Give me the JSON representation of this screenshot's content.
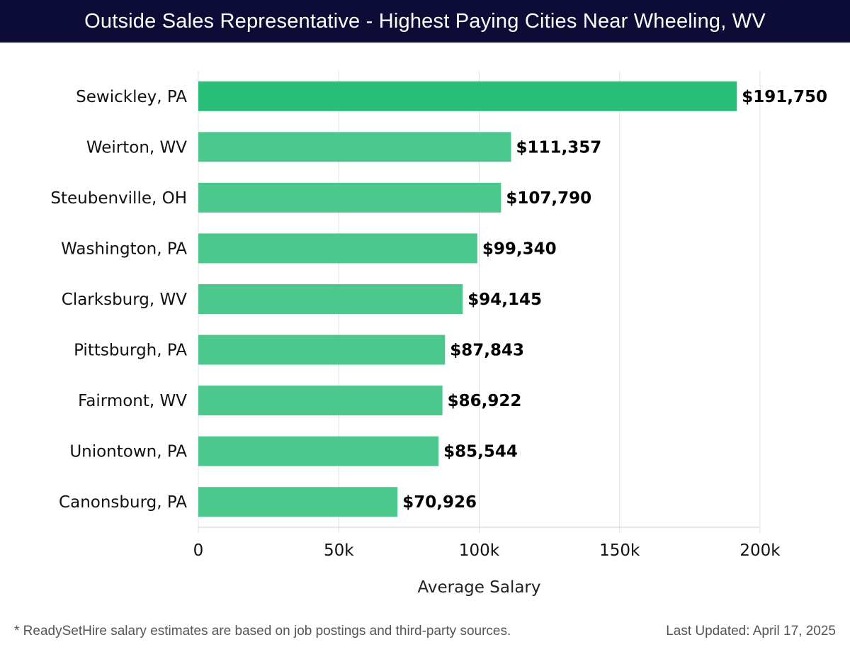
{
  "chart_data": {
    "type": "bar",
    "orientation": "horizontal",
    "title": "Outside Sales Representative - Highest Paying Cities Near Wheeling, WV",
    "xlabel": "Average Salary",
    "ylabel": "",
    "xlim": [
      0,
      200000
    ],
    "grid": true,
    "categories": [
      "Sewickley, PA",
      "Weirton, WV",
      "Steubenville, OH",
      "Washington, PA",
      "Clarksburg, WV",
      "Pittsburgh, PA",
      "Fairmont, WV",
      "Uniontown, PA",
      "Canonsburg, PA"
    ],
    "values": [
      191750,
      111357,
      107790,
      99340,
      94145,
      87843,
      86922,
      85544,
      70926
    ],
    "value_labels": [
      "$191,750",
      "$111,357",
      "$107,790",
      "$99,340",
      "$94,145",
      "$87,843",
      "$86,922",
      "$85,544",
      "$70,926"
    ],
    "ticks": [
      0,
      50000,
      100000,
      150000,
      200000
    ],
    "tick_labels": [
      "0",
      "50k",
      "100k",
      "150k",
      "200k"
    ],
    "colors": {
      "top_bar": "#2abf78",
      "bar": "#4cc78e",
      "grid": "#e0e0e0",
      "axis": "#cccccc"
    }
  },
  "footer": {
    "note": "* ReadySetHire salary estimates are based on job postings and third-party sources.",
    "updated": "Last Updated: April 17, 2025"
  },
  "colors": {
    "title_bg": "#0c0c36",
    "title_text": "#ffffff"
  }
}
